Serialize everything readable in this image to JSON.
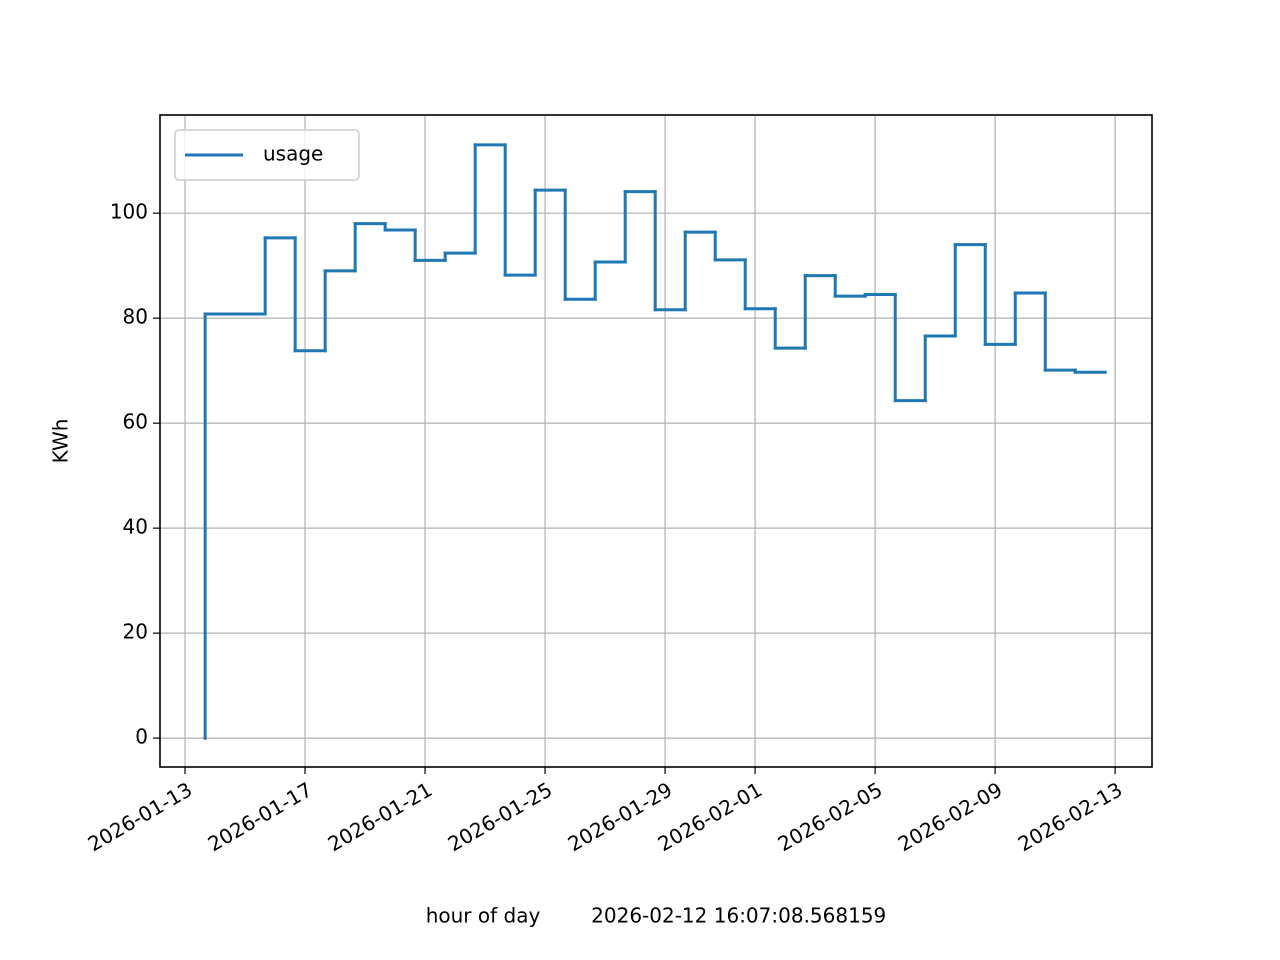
{
  "chart_data": {
    "type": "step",
    "xlabel": "hour of day        2026-02-12 16:07:08.568159",
    "ylabel": "KWh",
    "x": [
      "2026-01-13T16:07",
      "2026-01-14T16:07",
      "2026-01-15T16:07",
      "2026-01-16T16:07",
      "2026-01-17T16:07",
      "2026-01-18T16:07",
      "2026-01-19T16:07",
      "2026-01-20T16:07",
      "2026-01-21T16:07",
      "2026-01-22T16:07",
      "2026-01-23T16:07",
      "2026-01-24T16:07",
      "2026-01-25T16:07",
      "2026-01-26T16:07",
      "2026-01-27T16:07",
      "2026-01-28T16:07",
      "2026-01-29T16:07",
      "2026-01-30T16:07",
      "2026-01-31T16:07",
      "2026-02-01T16:07",
      "2026-02-02T16:07",
      "2026-02-03T16:07",
      "2026-02-04T16:07",
      "2026-02-05T16:07",
      "2026-02-06T16:07",
      "2026-02-07T16:07",
      "2026-02-08T16:07",
      "2026-02-09T16:07",
      "2026-02-10T16:07",
      "2026-02-11T16:07",
      "2026-02-12T16:07"
    ],
    "series": [
      {
        "name": "usage",
        "color": "#1f77b4",
        "values": [
          0,
          80.8,
          80.8,
          95.3,
          73.8,
          89,
          98,
          96.8,
          91,
          92.4,
          113,
          88.2,
          104.4,
          83.6,
          90.7,
          104.1,
          81.6,
          96.4,
          91.1,
          81.8,
          74.3,
          88.1,
          84.2,
          84.5,
          64.3,
          76.6,
          94,
          75,
          84.8,
          70.1,
          69.7
        ]
      }
    ],
    "xlim": [
      "2026-01-12T04:00",
      "2026-02-14T05:30"
    ],
    "xticks": [
      "2026-01-13",
      "2026-01-17",
      "2026-01-21",
      "2026-01-25",
      "2026-01-29",
      "2026-02-01",
      "2026-02-05",
      "2026-02-09",
      "2026-02-13"
    ],
    "ylim": [
      -5.5,
      118.7
    ],
    "yticks": [
      0,
      20,
      40,
      60,
      80,
      100
    ],
    "grid": true,
    "legend": "upper left"
  }
}
